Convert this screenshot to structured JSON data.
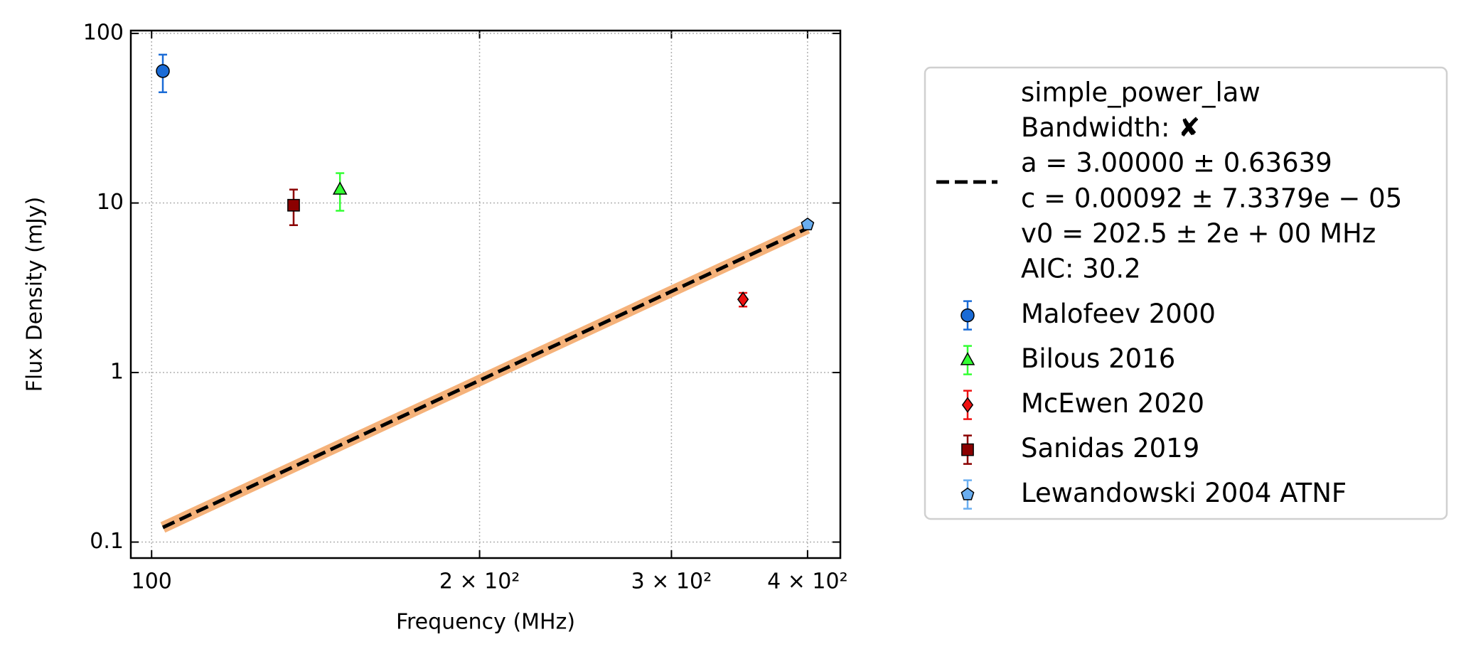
{
  "chart_data": {
    "type": "scatter",
    "x_label": "Frequency (MHz)",
    "y_label": "Flux Density (mJy)",
    "log_x": true,
    "log_y": true,
    "grid": true,
    "legend": "outside right",
    "xlim": [
      95.7,
      428.7
    ],
    "ylim": [
      0.0805,
      104
    ],
    "xticks": [
      100,
      {
        "value": 200,
        "label": "2 × 10²"
      },
      {
        "value": 300,
        "label": "3 × 10²"
      },
      {
        "value": 400,
        "label": "4 × 10²"
      }
    ],
    "yticks": [
      0.1,
      1,
      10,
      100
    ],
    "series": [
      {
        "name": "simple_power_law",
        "details": [
          "Bandwidth: ✘",
          "a = 3.00000 ± 0.63639",
          "c = 0.00092 ± 7.3379e − 05",
          "v0 = 202.5 ± 2e + 00 MHz",
          "AIC: 30.2"
        ],
        "kind": "line",
        "color": "#000000",
        "band_color": "#f5b27a",
        "line_style": "dashed",
        "x": [
          102.4,
          400
        ],
        "values": [
          0.122,
          7.1
        ]
      },
      {
        "name": "Malofeev 2000",
        "color": "#1a6bd6",
        "marker": "circle",
        "x": [
          102.4
        ],
        "values": [
          60
        ],
        "errors": [
          15
        ]
      },
      {
        "name": "Bilous 2016",
        "color": "#33ff33",
        "marker": "triangle",
        "x": [
          148.9
        ],
        "values": [
          12
        ],
        "errors": [
          3
        ]
      },
      {
        "name": "McEwen 2020",
        "color": "#ee1111",
        "marker": "diamond",
        "x": [
          349
        ],
        "values": [
          2.7
        ],
        "errors": [
          0.25
        ]
      },
      {
        "name": "Sanidas 2019",
        "color": "#8b0000",
        "marker": "square",
        "x": [
          135
        ],
        "values": [
          9.7
        ],
        "errors": [
          2.3
        ]
      },
      {
        "name": "Lewandowski 2004 ATNF",
        "color": "#6aaef0",
        "marker": "pentagon",
        "x": [
          400
        ],
        "values": [
          7.46
        ],
        "errors": [
          0.3
        ]
      }
    ]
  }
}
